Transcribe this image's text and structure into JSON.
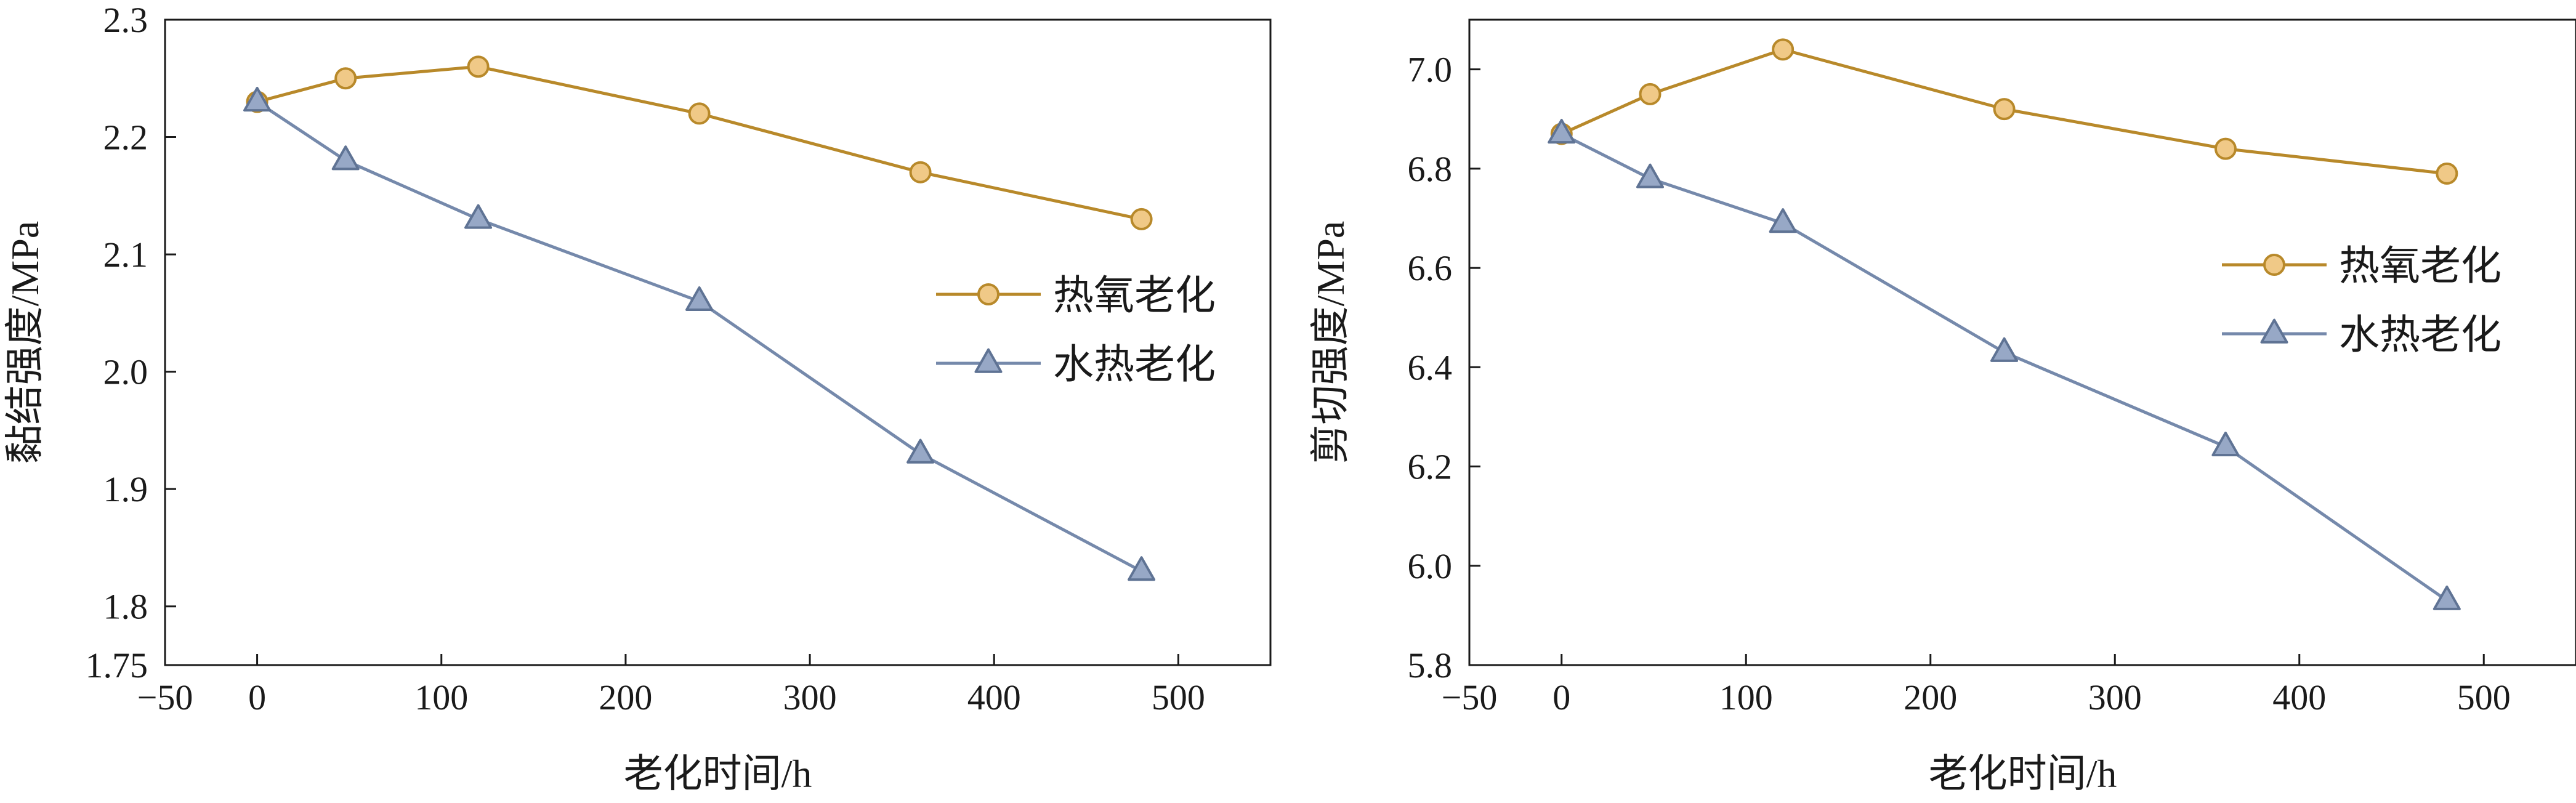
{
  "chart_data": [
    {
      "type": "line",
      "title": "",
      "xlabel": "老化时间/h",
      "ylabel": "黏结强度/MPa",
      "xlim": [
        -50,
        550
      ],
      "ylim": [
        1.75,
        2.3
      ],
      "x_ticks": [
        -50,
        0,
        100,
        200,
        300,
        400,
        500
      ],
      "x_tick_labels": [
        "−50",
        "0",
        "100",
        "200",
        "300",
        "400",
        "500"
      ],
      "y_ticks": [
        1.75,
        1.8,
        1.9,
        2.0,
        2.1,
        2.2,
        2.3
      ],
      "y_tick_labels": [
        "1.75",
        "1.8",
        "1.9",
        "2.0",
        "2.1",
        "2.2",
        "2.3"
      ],
      "grid": false,
      "legend_position": "center-right",
      "x": [
        0,
        48,
        120,
        240,
        360,
        480
      ],
      "series": [
        {
          "name": "热氧老化",
          "marker": "circle",
          "color": "#b8892a",
          "fill": "#f0c987",
          "values": [
            2.23,
            2.25,
            2.26,
            2.22,
            2.17,
            2.13
          ]
        },
        {
          "name": "水热老化",
          "marker": "triangle",
          "color": "#7589ab",
          "fill": "#97a8c6",
          "values": [
            2.23,
            2.18,
            2.13,
            2.06,
            1.93,
            1.83
          ]
        }
      ]
    },
    {
      "type": "line",
      "title": "",
      "xlabel": "老化时间/h",
      "ylabel": "剪切强度/MPa",
      "xlim": [
        -50,
        550
      ],
      "ylim": [
        5.8,
        7.1
      ],
      "x_ticks": [
        -50,
        0,
        100,
        200,
        300,
        400,
        500
      ],
      "x_tick_labels": [
        "−50",
        "0",
        "100",
        "200",
        "300",
        "400",
        "500"
      ],
      "y_ticks": [
        5.8,
        6.0,
        6.2,
        6.4,
        6.6,
        6.8,
        7.0
      ],
      "y_tick_labels": [
        "5.8",
        "6.0",
        "6.2",
        "6.4",
        "6.6",
        "6.8",
        "7.0"
      ],
      "grid": false,
      "legend_position": "center-right",
      "x": [
        0,
        48,
        120,
        240,
        360,
        480
      ],
      "series": [
        {
          "name": "热氧老化",
          "marker": "circle",
          "color": "#b8892a",
          "fill": "#f0c987",
          "values": [
            6.87,
            6.95,
            7.04,
            6.92,
            6.84,
            6.79
          ]
        },
        {
          "name": "水热老化",
          "marker": "triangle",
          "color": "#7589ab",
          "fill": "#97a8c6",
          "values": [
            6.87,
            6.78,
            6.69,
            6.43,
            6.24,
            5.93
          ]
        }
      ]
    }
  ]
}
